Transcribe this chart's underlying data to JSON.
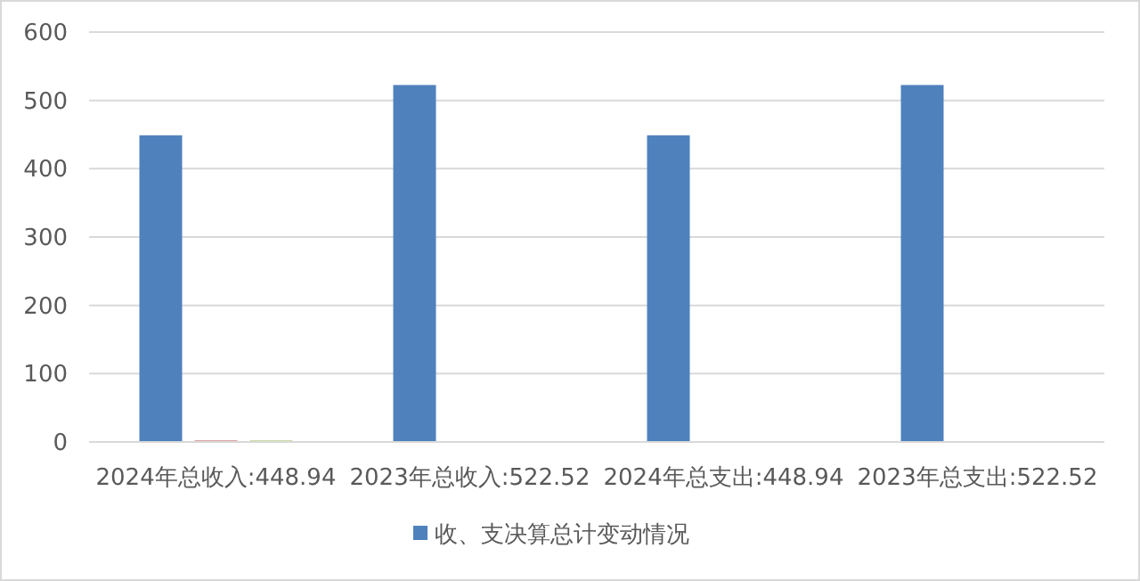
{
  "chart_data": {
    "type": "bar",
    "categories": [
      "2024年总收入:448.94",
      "2023年总收入:522.52",
      "2024年总支出:448.94",
      "2023年总支出:522.52"
    ],
    "series": [
      {
        "name": "收、支决算总计变动情况",
        "color": "#4f81bd",
        "values": [
          448.94,
          522.52,
          448.94,
          522.52
        ]
      },
      {
        "color": "#c0504d",
        "values": [
          2,
          null,
          null,
          null
        ]
      },
      {
        "color": "#9bbb59",
        "values": [
          2,
          null,
          null,
          null
        ]
      }
    ],
    "ylim": [
      0,
      600
    ],
    "yticks": [
      0,
      100,
      200,
      300,
      400,
      500,
      600
    ],
    "grid": "y",
    "legend": "bottom"
  }
}
